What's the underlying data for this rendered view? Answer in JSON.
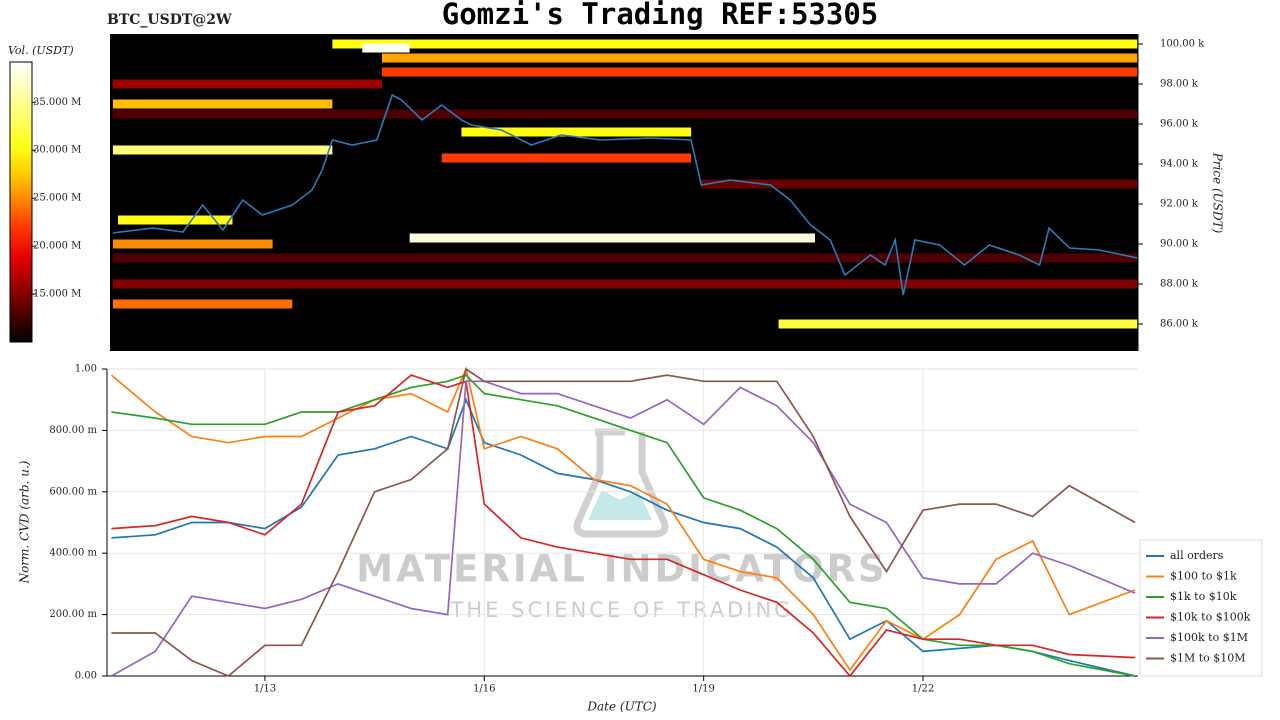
{
  "chart_data": [
    {
      "type": "heatmap",
      "title": "Gomzi's Trading REF:53305",
      "subtitle": "BTC_USDT@2W",
      "ylabel": "Price (USDT)",
      "xlim": [
        10.84,
        24.94
      ],
      "ylim": [
        84650,
        100500
      ],
      "yticks": [
        {
          "value": 86000,
          "label": "86.00 k"
        },
        {
          "value": 88000,
          "label": "88.00 k"
        },
        {
          "value": 90000,
          "label": "90.00 k"
        },
        {
          "value": 92000,
          "label": "92.00 k"
        },
        {
          "value": 94000,
          "label": "94.00 k"
        },
        {
          "value": 96000,
          "label": "96.00 k"
        },
        {
          "value": 98000,
          "label": "98.00 k"
        },
        {
          "value": 100000,
          "label": "100.00 k"
        }
      ],
      "colorbar": {
        "label": "Vol. (USDT)",
        "lim": [
          10,
          39.2
        ],
        "ticks": [
          {
            "value": 35,
            "label": "35.000 M"
          },
          {
            "value": 30,
            "label": "30.000 M"
          },
          {
            "value": 25,
            "label": "25.000 M"
          },
          {
            "value": 20,
            "label": "20.000 M"
          },
          {
            "value": 15,
            "label": "15.000 M"
          }
        ]
      },
      "levels": [
        {
          "price": 96500,
          "x": [
            10.88,
            24.93
          ],
          "volume": 13
        },
        {
          "price": 93000,
          "x": [
            18.94,
            24.93
          ],
          "volume": 14
        },
        {
          "price": 89300,
          "x": [
            10.88,
            24.93
          ],
          "volume": 13
        },
        {
          "price": 88000,
          "x": [
            10.88,
            24.93
          ],
          "volume": 15
        },
        {
          "price": 98000,
          "x": [
            10.88,
            14.57
          ],
          "volume": 16
        },
        {
          "price": 100000,
          "x": [
            13.89,
            24.93
          ],
          "volume": 30
        },
        {
          "price": 99800,
          "x": [
            14.3,
            14.95
          ],
          "volume": 39
        },
        {
          "price": 99300,
          "x": [
            14.57,
            24.93
          ],
          "volume": 26
        },
        {
          "price": 98600,
          "x": [
            14.57,
            24.93
          ],
          "volume": 22
        },
        {
          "price": 97000,
          "x": [
            10.88,
            13.89
          ],
          "volume": 27
        },
        {
          "price": 94700,
          "x": [
            10.88,
            13.89
          ],
          "volume": 34
        },
        {
          "price": 95600,
          "x": [
            15.66,
            18.81
          ],
          "volume": 30
        },
        {
          "price": 94300,
          "x": [
            15.39,
            18.81
          ],
          "volume": 22
        },
        {
          "price": 91200,
          "x": [
            10.95,
            12.52
          ],
          "volume": 30
        },
        {
          "price": 90300,
          "x": [
            14.95,
            20.51
          ],
          "volume": 38
        },
        {
          "price": 90000,
          "x": [
            10.88,
            13.07
          ],
          "volume": 25
        },
        {
          "price": 87000,
          "x": [
            10.88,
            13.34
          ],
          "volume": 24
        },
        {
          "price": 86000,
          "x": [
            20.01,
            24.93
          ],
          "volume": 32
        }
      ],
      "price_line": {
        "color": "#2b7bba",
        "x": [
          10.88,
          11.43,
          11.84,
          12.11,
          12.39,
          12.66,
          12.93,
          13.34,
          13.61,
          13.75,
          13.89,
          14.16,
          14.5,
          14.71,
          14.84,
          15.12,
          15.39,
          15.66,
          15.8,
          16.21,
          16.62,
          17.03,
          17.58,
          18.26,
          18.81,
          18.95,
          19.35,
          19.9,
          20.17,
          20.45,
          20.72,
          20.92,
          21.27,
          21.47,
          21.61,
          21.72,
          21.88,
          22.22,
          22.56,
          22.9,
          23.31,
          23.59,
          23.72,
          24.0,
          24.41,
          24.93
        ],
        "values": [
          90550,
          90800,
          90600,
          91950,
          90700,
          92200,
          91450,
          91950,
          92700,
          93700,
          95200,
          94950,
          95200,
          97450,
          97200,
          96200,
          96950,
          96200,
          95950,
          95700,
          94950,
          95450,
          95200,
          95300,
          95200,
          92950,
          93200,
          92950,
          92200,
          90950,
          90200,
          88450,
          89450,
          88950,
          90200,
          87450,
          90200,
          89950,
          88950,
          89950,
          89450,
          88950,
          90800,
          89800,
          89700,
          89300
        ]
      }
    },
    {
      "type": "line",
      "xlabel": "Date (UTC)",
      "ylabel": "Norm. CVD (arb. u.)",
      "watermark": [
        "MATERIAL INDICATORS",
        "THE SCIENCE OF TRADING"
      ],
      "xlim": [
        10.84,
        24.94
      ],
      "ylim": [
        0,
        1
      ],
      "xticks": [
        {
          "value": 13,
          "label": "1/13"
        },
        {
          "value": 16,
          "label": "1/16"
        },
        {
          "value": 19,
          "label": "1/19"
        },
        {
          "value": 22,
          "label": "1/22"
        }
      ],
      "yticks": [
        {
          "value": 0,
          "label": "0.00"
        },
        {
          "value": 0.2,
          "label": "200.00 m"
        },
        {
          "value": 0.4,
          "label": "400.00 m"
        },
        {
          "value": 0.6,
          "label": "600.00 m"
        },
        {
          "value": 0.8,
          "label": "800.00 m"
        },
        {
          "value": 1,
          "label": "1.00"
        }
      ],
      "grid": true,
      "legend": "right",
      "x": [
        10.9,
        11.5,
        12,
        12.5,
        13,
        13.5,
        14,
        14.5,
        15,
        15.5,
        15.75,
        16,
        16.5,
        17,
        17.5,
        18,
        18.5,
        19,
        19.5,
        20,
        20.5,
        21,
        21.5,
        22,
        22.5,
        23,
        23.5,
        24,
        24.9
      ],
      "series": [
        {
          "name": "all orders",
          "color": "#1f77b4",
          "values": [
            0.45,
            0.46,
            0.5,
            0.5,
            0.48,
            0.55,
            0.72,
            0.74,
            0.78,
            0.74,
            0.9,
            0.76,
            0.72,
            0.66,
            0.64,
            0.6,
            0.54,
            0.5,
            0.48,
            0.42,
            0.32,
            0.12,
            0.18,
            0.08,
            0.09,
            0.1,
            0.08,
            0.05,
            0.0
          ]
        },
        {
          "name": "$100 to $1k",
          "color": "#ff7f0e",
          "values": [
            0.98,
            0.86,
            0.78,
            0.76,
            0.78,
            0.78,
            0.84,
            0.9,
            0.92,
            0.86,
            1.0,
            0.74,
            0.78,
            0.74,
            0.64,
            0.62,
            0.56,
            0.38,
            0.34,
            0.32,
            0.2,
            0.02,
            0.18,
            0.12,
            0.2,
            0.38,
            0.44,
            0.2,
            0.28
          ]
        },
        {
          "name": "$1k to $10k",
          "color": "#2ca02c",
          "values": [
            0.86,
            0.84,
            0.82,
            0.82,
            0.82,
            0.86,
            0.86,
            0.9,
            0.94,
            0.96,
            0.98,
            0.92,
            0.9,
            0.88,
            0.84,
            0.8,
            0.76,
            0.58,
            0.54,
            0.48,
            0.38,
            0.24,
            0.22,
            0.12,
            0.1,
            0.1,
            0.08,
            0.04,
            0.0
          ]
        },
        {
          "name": "$10k to $100k",
          "color": "#d62728",
          "values": [
            0.48,
            0.49,
            0.52,
            0.5,
            0.46,
            0.56,
            0.86,
            0.88,
            0.98,
            0.94,
            0.96,
            0.56,
            0.45,
            0.42,
            0.4,
            0.38,
            0.38,
            0.33,
            0.28,
            0.24,
            0.14,
            0.0,
            0.15,
            0.12,
            0.12,
            0.1,
            0.1,
            0.07,
            0.06
          ]
        },
        {
          "name": "$100k to $1M",
          "color": "#9467bd",
          "values": [
            0.0,
            0.08,
            0.26,
            0.24,
            0.22,
            0.25,
            0.3,
            0.26,
            0.22,
            0.2,
            0.96,
            0.96,
            0.92,
            0.92,
            0.88,
            0.84,
            0.9,
            0.82,
            0.94,
            0.88,
            0.76,
            0.56,
            0.5,
            0.32,
            0.3,
            0.3,
            0.4,
            0.36,
            0.27
          ]
        },
        {
          "name": "$1M to $10M",
          "color": "#8c564b",
          "values": [
            0.14,
            0.14,
            0.05,
            0.0,
            0.1,
            0.1,
            0.34,
            0.6,
            0.64,
            0.74,
            1.0,
            0.96,
            0.96,
            0.96,
            0.96,
            0.96,
            0.98,
            0.96,
            0.96,
            0.96,
            0.78,
            0.52,
            0.34,
            0.54,
            0.56,
            0.56,
            0.52,
            0.62,
            0.5
          ]
        }
      ]
    }
  ]
}
